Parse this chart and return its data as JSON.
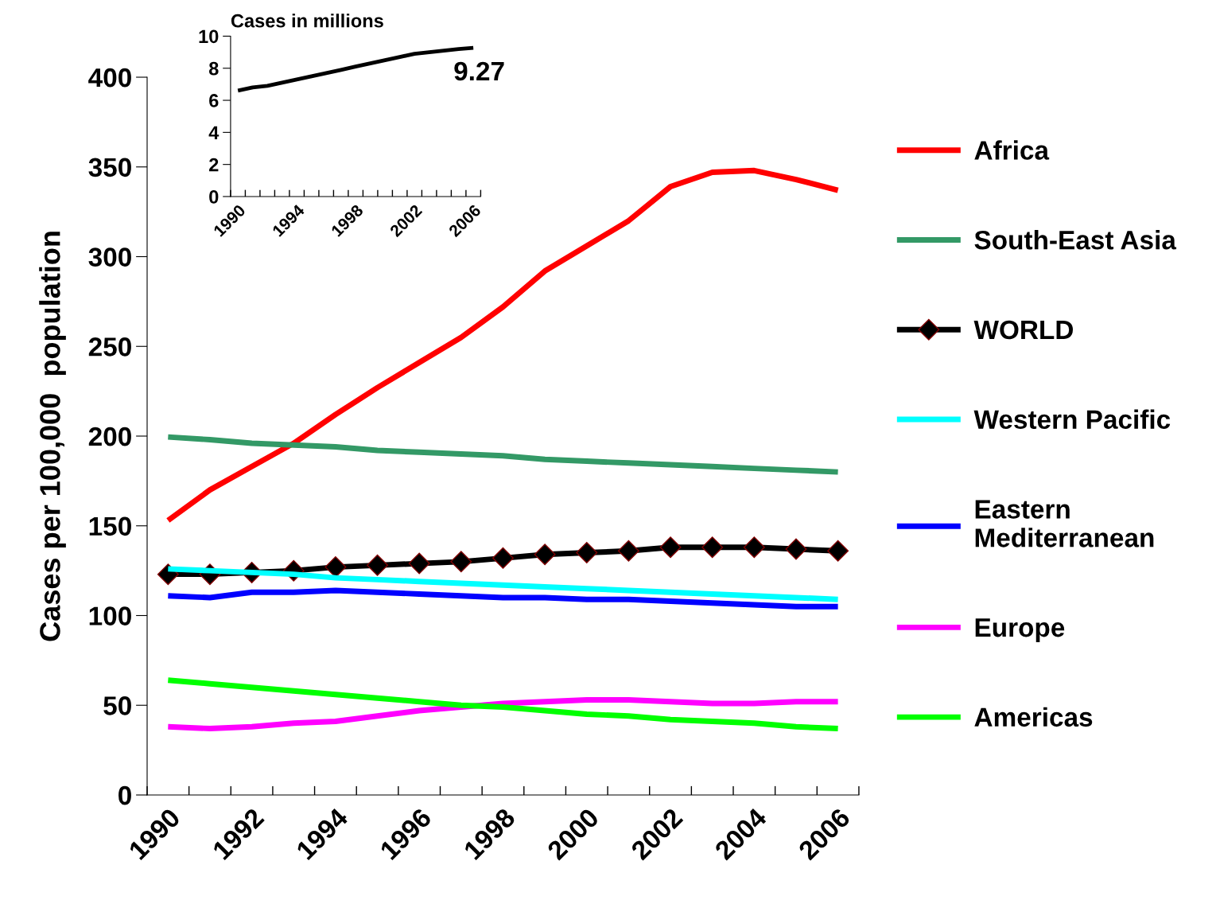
{
  "chart_data": [
    {
      "type": "line",
      "ylabel": "Cases per 100,000  population",
      "categories": [
        "1990",
        null,
        "1992",
        null,
        "1994",
        null,
        "1996",
        null,
        "1998",
        null,
        "2000",
        null,
        "2002",
        null,
        "2004",
        null,
        "2006"
      ],
      "ylim": [
        0,
        400
      ],
      "yticks": [
        0,
        50,
        100,
        150,
        200,
        250,
        300,
        350,
        400
      ],
      "grid": false,
      "legend": "right",
      "marker": "none",
      "line_style": "solid",
      "series": [
        {
          "name": "Africa",
          "color": "#ff0000",
          "values": [
            153,
            170,
            183,
            196,
            212,
            227,
            241,
            255,
            272,
            292,
            306,
            320,
            339,
            347,
            348,
            343,
            337
          ]
        },
        {
          "name": "South-East Asia",
          "color": "#339966",
          "values": [
            199.5,
            198,
            196,
            195,
            194,
            192,
            191,
            190,
            189,
            187,
            186,
            185,
            184,
            183,
            182,
            181,
            180
          ]
        },
        {
          "name": "WORLD",
          "color": "#000000",
          "marker": "diamond",
          "values": [
            123,
            123,
            124,
            125,
            127,
            128,
            129,
            130,
            132,
            134,
            135,
            136,
            138,
            138,
            138,
            137,
            136
          ]
        },
        {
          "name": "Western Pacific",
          "color": "#00ffff",
          "values": [
            126,
            125,
            124,
            123,
            121,
            120,
            119,
            118,
            117,
            116,
            115,
            114,
            113,
            112,
            111,
            110,
            109
          ]
        },
        {
          "name": "Eastern\nMediterranean",
          "color": "#0000ff",
          "values": [
            111,
            110,
            113,
            113,
            114,
            113,
            112,
            111,
            110,
            110,
            109,
            109,
            108,
            107,
            106,
            105,
            105
          ]
        },
        {
          "name": "Europe",
          "color": "#ff00ff",
          "values": [
            38,
            37,
            38,
            40,
            41,
            44,
            47,
            49,
            51,
            52,
            53,
            53,
            52,
            51,
            51,
            52,
            52
          ]
        },
        {
          "name": "Americas",
          "color": "#00ff00",
          "values": [
            64,
            62,
            60,
            58,
            56,
            54,
            52,
            50,
            49,
            47,
            45,
            44,
            42,
            41,
            40,
            38,
            37
          ]
        }
      ]
    },
    {
      "type": "line",
      "title": "Cases in millions",
      "categories": [
        "1990",
        null,
        null,
        null,
        "1994",
        null,
        null,
        null,
        "1998",
        null,
        null,
        null,
        "2002",
        null,
        null,
        null,
        "2006"
      ],
      "ylim": [
        0,
        10
      ],
      "yticks": [
        0,
        2,
        4,
        6,
        8,
        10
      ],
      "grid": false,
      "legend": false,
      "marker": "none",
      "line_style": "solid",
      "annotations": [
        {
          "text": "9.27",
          "x": "2006",
          "y": 9.27
        }
      ],
      "series": [
        {
          "color": "#000000",
          "values": [
            6.6,
            6.8,
            6.9,
            7.1,
            7.3,
            7.5,
            7.7,
            7.9,
            8.1,
            8.3,
            8.5,
            8.7,
            8.9,
            9.0,
            9.1,
            9.2,
            9.27
          ]
        }
      ]
    }
  ]
}
